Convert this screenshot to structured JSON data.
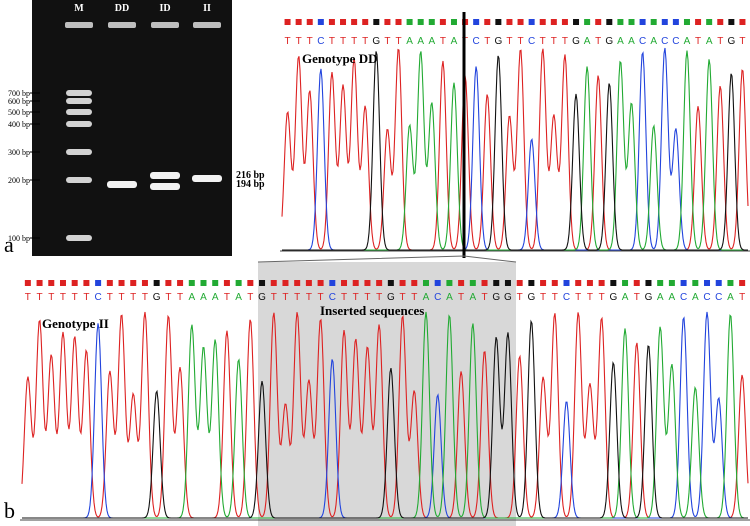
{
  "panel_a": {
    "letter": "a",
    "gel": {
      "lane_labels": [
        "M",
        "DD",
        "ID",
        "II"
      ],
      "ladder_labels": [
        "700 bp",
        "600 bp",
        "500 bp",
        "400 bp",
        "300 bp",
        "200 bp",
        "100 bp"
      ],
      "band_labels": [
        "216 bp",
        "194 bp"
      ]
    },
    "chromatogram": {
      "genotype_label": "Genotype DD",
      "sequence": "TTTCTTTTGTTAAATATCTGTTCTTTGATGAACACCATATGT"
    }
  },
  "panel_b": {
    "letter": "b",
    "chromatogram": {
      "genotype_label": "Genotype II",
      "inserted_label": "Inserted sequences",
      "sequence": "TTTTTTCTTTTGTTAAATATGTTTTTCTTTTGTTACATATGGTGTTCTTTGATGAACACCAT"
    }
  },
  "colors": {
    "A": "#22aa33",
    "C": "#2244dd",
    "G": "#111111",
    "T": "#dd2222",
    "gel_background": "#111111",
    "highlight": "#d8d8d8"
  }
}
